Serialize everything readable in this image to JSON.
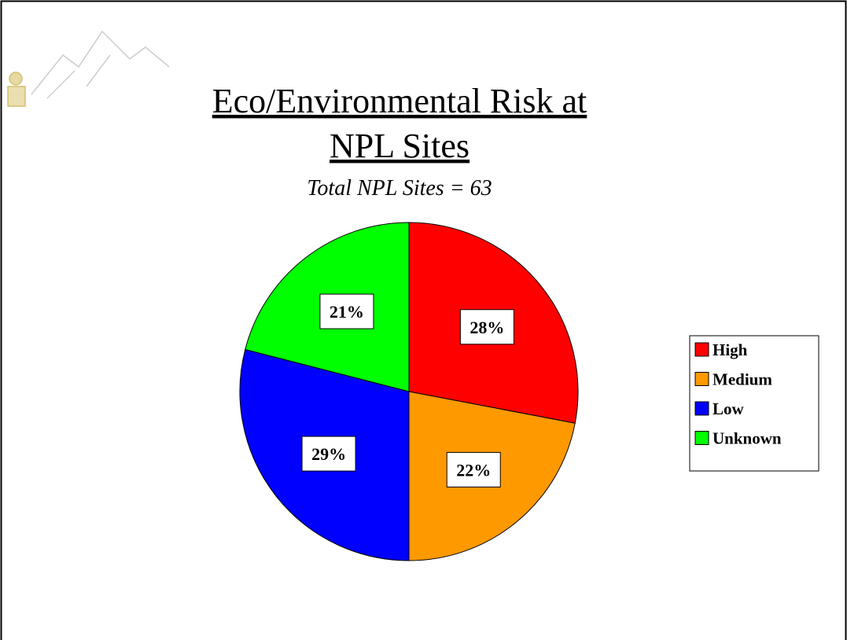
{
  "chart_data": {
    "type": "pie",
    "title": [
      "Eco/Environmental Risk at",
      "NPL Sites"
    ],
    "subtitle": "Total NPL Sites = 63",
    "categories": [
      "High",
      "Medium",
      "Low",
      "Unknown"
    ],
    "values": [
      28,
      22,
      29,
      21
    ],
    "value_labels": [
      "28%",
      "22%",
      "29%",
      "21%"
    ],
    "colors": [
      "#ff0000",
      "#ff9900",
      "#0000ff",
      "#00ff00"
    ],
    "legend": "right"
  }
}
